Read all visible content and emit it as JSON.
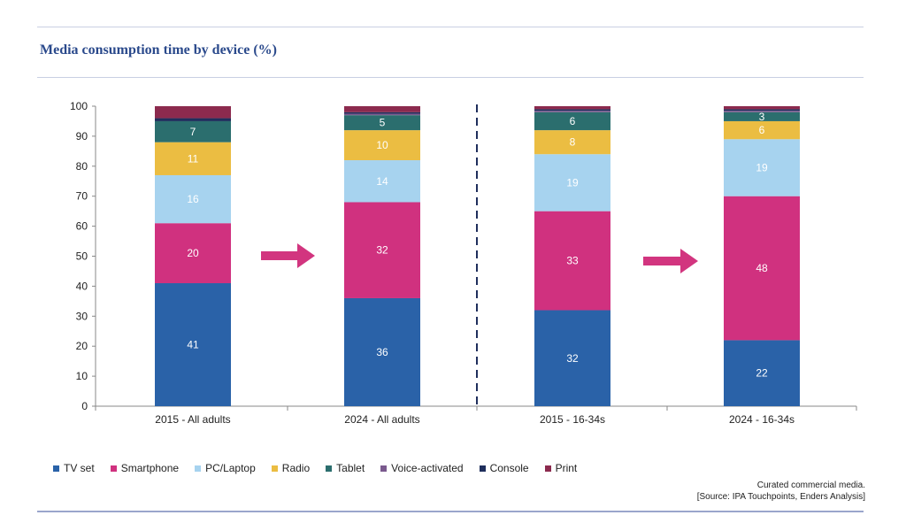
{
  "header": {
    "title": "Media consumption time by device (%)"
  },
  "footer": {
    "note": "Curated commercial media.",
    "source": "[Source: IPA Touchpoints, Enders Analysis]"
  },
  "colors": {
    "TV set": "#2a62a8",
    "Smartphone": "#d0317f",
    "PC/Laptop": "#a7d3ef",
    "Radio": "#ebbd42",
    "Tablet": "#2b6e6e",
    "Voice-activated": "#7a5a8e",
    "Console": "#1f2e5c",
    "Print": "#8c2a4e",
    "arrow": "#d2357f"
  },
  "chart_data": {
    "type": "bar",
    "stacked": true,
    "title": "Media consumption time by device (%)",
    "categories": [
      "2015 - All adults",
      "2024 - All adults",
      "2015 - 16-34s",
      "2024 - 16-34s"
    ],
    "ylim": [
      0,
      100
    ],
    "yticks": [
      0,
      10,
      20,
      30,
      40,
      50,
      60,
      70,
      80,
      90,
      100
    ],
    "legend_position": "bottom",
    "grid": false,
    "series": [
      {
        "name": "TV set",
        "values": [
          41,
          36,
          32,
          22
        ],
        "labels": [
          "41",
          "36",
          "32",
          "22"
        ]
      },
      {
        "name": "Smartphone",
        "values": [
          20,
          32,
          33,
          48
        ],
        "labels": [
          "20",
          "32",
          "33",
          "48"
        ]
      },
      {
        "name": "PC/Laptop",
        "values": [
          16,
          14,
          19,
          19
        ],
        "labels": [
          "16",
          "14",
          "19",
          "19"
        ]
      },
      {
        "name": "Radio",
        "values": [
          11,
          10,
          8,
          6
        ],
        "labels": [
          "11",
          "10",
          "8",
          "6"
        ]
      },
      {
        "name": "Tablet",
        "values": [
          7,
          5,
          6,
          3
        ],
        "labels": [
          "7",
          "5",
          "6",
          "3"
        ]
      },
      {
        "name": "Voice-activated",
        "values": [
          0,
          0.5,
          0.5,
          0.5
        ],
        "labels": [
          "",
          "",
          "",
          ""
        ]
      },
      {
        "name": "Console",
        "values": [
          1,
          0.5,
          0.5,
          0.5
        ],
        "labels": [
          "",
          "",
          "",
          ""
        ]
      },
      {
        "name": "Print",
        "values": [
          4,
          2,
          1,
          1
        ],
        "labels": [
          "",
          "",
          "",
          ""
        ]
      }
    ]
  }
}
